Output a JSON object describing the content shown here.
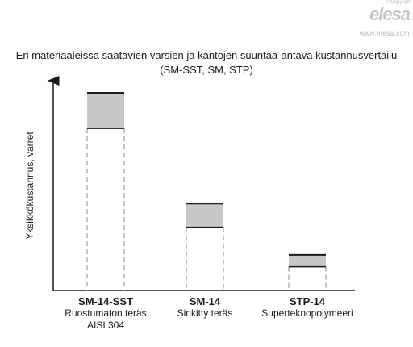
{
  "brand": {
    "copyright": "© Copyright",
    "logo": "elesa",
    "website": "www.elesa.com"
  },
  "chart_data": {
    "type": "bar",
    "title": "Eri materiaaleissa saatavien varsien ja kantojen suuntaa-antava kustannusvertailu",
    "subtitle": "(SM-SST, SM, STP)",
    "ylabel": "Yksikkökustannus, varret",
    "xlabel": "",
    "ylim": [
      0,
      100
    ],
    "categories": [
      {
        "code": "SM-14-SST",
        "name": "Ruostumaton teräs",
        "extra": "AISI 304"
      },
      {
        "code": "SM-14",
        "name": "Sinkitty teräs",
        "extra": ""
      },
      {
        "code": "STP-14",
        "name": "Superteknopolymeeri",
        "extra": ""
      }
    ],
    "ranges": [
      {
        "low": 82,
        "high": 100
      },
      {
        "low": 32,
        "high": 44
      },
      {
        "low": 12,
        "high": 18
      }
    ],
    "colors": {
      "range_fill": "#c8c8c8",
      "axis": "#1a1a1a",
      "dashed": "#9a9a9a"
    }
  }
}
